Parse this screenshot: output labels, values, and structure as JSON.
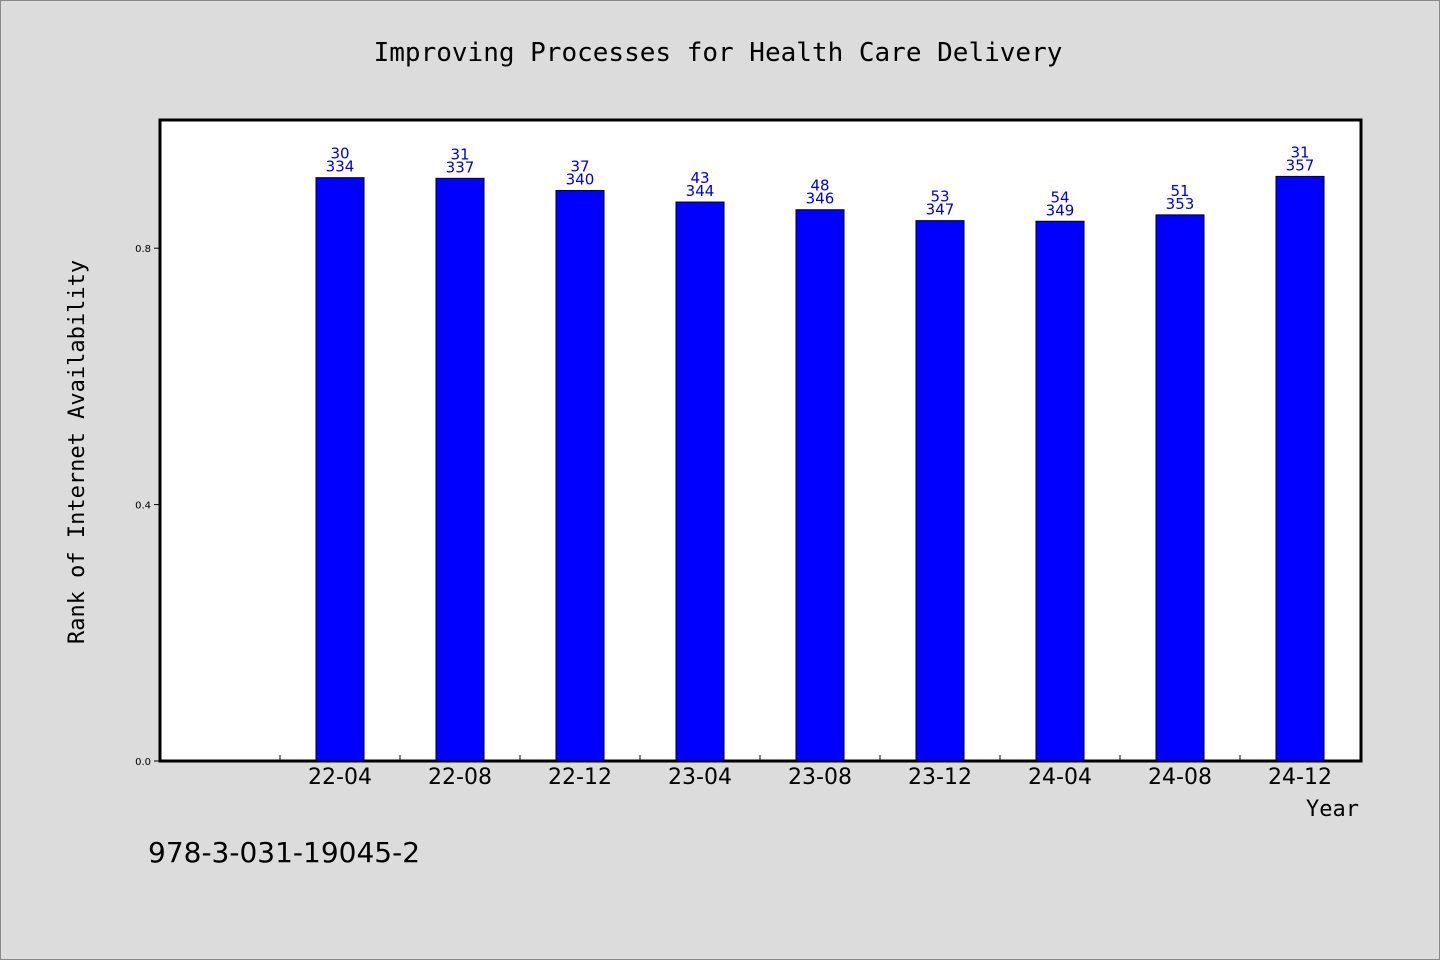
{
  "chart_data": {
    "type": "bar",
    "title": "Improving Processes for Health Care Delivery",
    "xlabel": "Year",
    "ylabel": "Rank of Internet Availability",
    "categories": [
      "22-04",
      "22-08",
      "22-12",
      "23-04",
      "23-08",
      "23-12",
      "24-04",
      "24-08",
      "24-12"
    ],
    "series": [
      {
        "values": [
          0.91,
          0.909,
          0.89,
          0.872,
          0.86,
          0.843,
          0.842,
          0.852,
          0.912
        ],
        "label_top": [
          "30",
          "31",
          "37",
          "43",
          "48",
          "53",
          "54",
          "51",
          "31"
        ],
        "label_bottom": [
          "334",
          "337",
          "340",
          "344",
          "346",
          "347",
          "349",
          "353",
          "357"
        ]
      }
    ],
    "ylim": [
      0,
      1.0
    ],
    "yticks": [
      0.0,
      0.4,
      0.8
    ],
    "ytick_labels": [
      "0.0",
      "0.4",
      "0.8"
    ],
    "bar_color": "#0000ff",
    "label_color": "#0000cc",
    "grid": false,
    "legend": "none"
  },
  "footer_text": "978-3-031-19045-2"
}
